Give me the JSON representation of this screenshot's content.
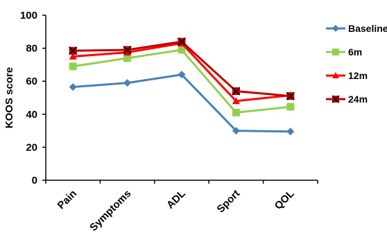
{
  "chart_data": {
    "type": "line",
    "title": "",
    "xlabel": "",
    "ylabel": "KOOS score",
    "categories": [
      "Pain",
      "Symptoms",
      "ADL",
      "Sport",
      "QOL"
    ],
    "ylim": [
      0,
      100
    ],
    "yticks": [
      0,
      20,
      40,
      60,
      80,
      100
    ],
    "grid": false,
    "legend_position": "right",
    "series": [
      {
        "name": "Baseline",
        "values": [
          56.5,
          59,
          64,
          30,
          29.5
        ],
        "color": "#4a7ebb",
        "marker": "diamond"
      },
      {
        "name": "6m",
        "values": [
          69,
          74,
          79,
          41,
          44.5
        ],
        "color": "#92d050",
        "marker": "square"
      },
      {
        "name": "12m",
        "values": [
          75,
          77.5,
          83,
          48,
          51.5
        ],
        "color": "#ff0000",
        "marker": "triangle"
      },
      {
        "name": "24m",
        "values": [
          78.5,
          79,
          84,
          54,
          51
        ],
        "color": "#c00000",
        "marker": "x-square"
      }
    ]
  }
}
